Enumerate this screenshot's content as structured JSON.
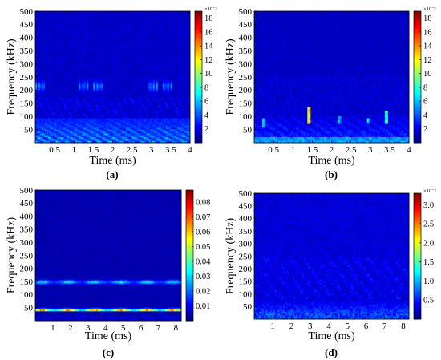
{
  "chart_data": [
    {
      "type": "heatmap",
      "panel_label": "(a)",
      "xlabel": "Time (ms)",
      "ylabel": "Frequency (kHz)",
      "xlim": [
        0,
        4
      ],
      "ylim": [
        0,
        500
      ],
      "xticks": [
        0.5,
        1,
        1.5,
        2,
        2.5,
        3,
        3.5,
        4
      ],
      "xtick_labels": [
        "0.5",
        "1",
        "1.5",
        "2",
        "2.5",
        "3",
        "3.5",
        "4"
      ],
      "yticks": [
        50,
        100,
        150,
        200,
        250,
        300,
        350,
        400,
        450,
        500
      ],
      "colorbar": {
        "ticks": [
          2,
          4,
          6,
          8,
          10,
          12,
          14,
          16,
          18
        ],
        "tick_labels": [
          "2",
          "4",
          "6",
          "8",
          "10",
          "12",
          "14",
          "16",
          "18"
        ],
        "range": [
          0,
          19
        ],
        "exponent": "×10⁻³"
      },
      "features": {
        "bursts_time": [
          0.12,
          1.25,
          1.62,
          3.05,
          3.42
        ],
        "burst_band": [
          195,
          235
        ],
        "low_freq_band_top": 90
      }
    },
    {
      "type": "heatmap",
      "panel_label": "(b)",
      "xlabel": "Time (ms)",
      "ylabel": "Frequency (kHz)",
      "xlim": [
        0,
        4
      ],
      "ylim": [
        0,
        500
      ],
      "xticks": [
        0.5,
        1,
        1.5,
        2,
        2.5,
        3,
        3.5,
        4
      ],
      "xtick_labels": [
        "0.5",
        "1",
        "1.5",
        "2",
        "2.5",
        "3",
        "3.5",
        "4"
      ],
      "yticks": [
        50,
        100,
        150,
        200,
        250,
        300,
        350,
        400,
        450,
        500
      ],
      "colorbar": {
        "ticks": [
          2,
          4,
          6,
          8,
          10,
          12,
          14,
          16,
          18
        ],
        "tick_labels": [
          "2",
          "4",
          "6",
          "8",
          "10",
          "12",
          "14",
          "16",
          "18"
        ],
        "range": [
          0,
          19
        ],
        "exponent": "×10⁻³"
      },
      "features": {
        "hotspots": [
          {
            "t": 1.42,
            "f_low": 70,
            "f_high": 135,
            "level": 0.92
          },
          {
            "t": 3.42,
            "f_low": 70,
            "f_high": 125,
            "level": 0.6
          },
          {
            "t": 0.25,
            "f_low": 60,
            "f_high": 95,
            "level": 0.4
          },
          {
            "t": 2.2,
            "f_low": 70,
            "f_high": 100,
            "level": 0.35
          },
          {
            "t": 2.95,
            "f_low": 70,
            "f_high": 95,
            "level": 0.35
          }
        ]
      }
    },
    {
      "type": "heatmap",
      "panel_label": "(c)",
      "xlabel": "Time (ms)",
      "ylabel": "Frequency (kHz)",
      "xlim": [
        0,
        8.3
      ],
      "ylim": [
        0,
        500
      ],
      "xticks": [
        1,
        2,
        3,
        4,
        5,
        6,
        7,
        8
      ],
      "xtick_labels": [
        "1",
        "2",
        "3",
        "4",
        "5",
        "6",
        "7",
        "8"
      ],
      "yticks": [
        50,
        100,
        150,
        200,
        250,
        300,
        350,
        400,
        450,
        500
      ],
      "colorbar": {
        "ticks": [
          0.01,
          0.02,
          0.03,
          0.04,
          0.05,
          0.06,
          0.07,
          0.08
        ],
        "tick_labels": [
          "0.01",
          "0.02",
          "0.03",
          "0.04",
          "0.05",
          "0.06",
          "0.07",
          "0.08"
        ],
        "range": [
          0,
          0.088
        ],
        "exponent": ""
      },
      "features": {
        "bands": [
          {
            "f": 40,
            "width": 8,
            "level": 0.75
          },
          {
            "f": 147,
            "width": 14,
            "level": 0.3
          }
        ]
      }
    },
    {
      "type": "heatmap",
      "panel_label": "(d)",
      "xlabel": "Time (ms)",
      "ylabel": "Frequency (kHz)",
      "xlim": [
        0,
        8.3
      ],
      "ylim": [
        0,
        500
      ],
      "xticks": [
        1,
        2,
        3,
        4,
        5,
        6,
        7,
        8
      ],
      "xtick_labels": [
        "1",
        "2",
        "3",
        "4",
        "5",
        "6",
        "7",
        "8"
      ],
      "yticks": [
        50,
        100,
        150,
        200,
        250,
        300,
        350,
        400,
        450,
        500
      ],
      "colorbar": {
        "ticks": [
          0.5,
          1.0,
          1.5,
          2.0,
          2.5,
          3.0
        ],
        "tick_labels": [
          "0.5",
          "1.0",
          "1.5",
          "2.0",
          "2.5",
          "3.0"
        ],
        "range": [
          0,
          3.3
        ],
        "exponent": "×10⁻³"
      },
      "features": {
        "low_freq_band_top": 80
      }
    }
  ]
}
